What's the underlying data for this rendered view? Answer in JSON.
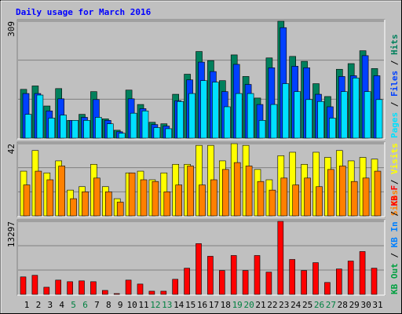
{
  "chart_data": {
    "type": "bar",
    "title": "Daily usage for March 2016",
    "categories": [
      "1",
      "2",
      "3",
      "4",
      "5",
      "6",
      "7",
      "8",
      "9",
      "10",
      "11",
      "12",
      "13",
      "14",
      "15",
      "16",
      "17",
      "18",
      "19",
      "20",
      "21",
      "22",
      "23",
      "24",
      "25",
      "26",
      "27",
      "28",
      "29",
      "30",
      "31"
    ],
    "category_color": "#000000",
    "highlight_categories": [
      "5",
      "6",
      "12",
      "13",
      "19",
      "20",
      "26",
      "27"
    ],
    "highlight_color": "#008040",
    "legend_separator": " / ",
    "panels": [
      {
        "ylim": [
          0,
          309
        ],
        "yticks": [
          309
        ],
        "gridlines": [
          103,
          206
        ],
        "series": [
          {
            "name": "Hits",
            "color": "#00805C",
            "values": [
              129,
              138,
              85,
              131,
              47,
              63,
              123,
              51,
              21,
              127,
              89,
              42,
              38,
              116,
              169,
              229,
              205,
              152,
              220,
              163,
              106,
              212,
              309,
              216,
              203,
              144,
              110,
              182,
              197,
              231,
              184
            ]
          },
          {
            "name": "Files",
            "color": "#0040FF",
            "values": [
              118,
              118,
              72,
              104,
              47,
              55,
              102,
              47,
              17,
              104,
              78,
              36,
              32,
              99,
              154,
              201,
              176,
              123,
              195,
              142,
              89,
              186,
              292,
              190,
              186,
              116,
              83,
              163,
              165,
              218,
              165
            ]
          },
          {
            "name": "Pages",
            "color": "#00E0FF",
            "values": [
              63,
              114,
              53,
              61,
              47,
              47,
              55,
              38,
              13,
              66,
              72,
              28,
              25,
              97,
              118,
              152,
              148,
              83,
              118,
              118,
              47,
              89,
              144,
              123,
              102,
              97,
              53,
              123,
              159,
              123,
              102
            ]
          }
        ]
      },
      {
        "ylim": [
          0,
          42
        ],
        "yticks": [
          42
        ],
        "gridlines": [
          14,
          28
        ],
        "series": [
          {
            "name": "Visits",
            "color": "#FFFF00",
            "values": [
              26,
              38,
              25,
              32,
              15,
              17,
              30,
              17,
              10,
              25,
              26,
              21,
              25,
              30,
              30,
              41,
              41,
              32,
              42,
              41,
              27,
              21,
              35,
              37,
              30,
              37,
              34,
              38,
              32,
              34,
              33
            ]
          },
          {
            "name": "Sites",
            "color": "#FF8000",
            "values": [
              18,
              26,
              21,
              29,
              10,
              14,
              22,
              14,
              8,
              25,
              21,
              20,
              14,
              18,
              29,
              18,
              21,
              27,
              31,
              29,
              20,
              15,
              22,
              18,
              22,
              17,
              27,
              29,
              20,
              22,
              26
            ]
          }
        ]
      },
      {
        "ylim": [
          0,
          13297
        ],
        "yticks": [
          13297
        ],
        "gridlines": [
          4432,
          8865
        ],
        "series": [
          {
            "name": "KB F",
            "color": "#FF0000",
            "values": [
              3180,
              3470,
              1300,
              2600,
              2310,
              2460,
              2310,
              720,
              145,
              2600,
              1880,
              580,
              580,
              2750,
              4770,
              9250,
              6940,
              4340,
              7080,
              4340,
              7080,
              4050,
              13297,
              6360,
              4340,
              5780,
              2170,
              4630,
              6070,
              7800,
              4770
            ]
          },
          {
            "name": "KB In",
            "color": "#0080FF"
          },
          {
            "name": "KB Out",
            "color": "#00A040"
          }
        ]
      }
    ]
  }
}
